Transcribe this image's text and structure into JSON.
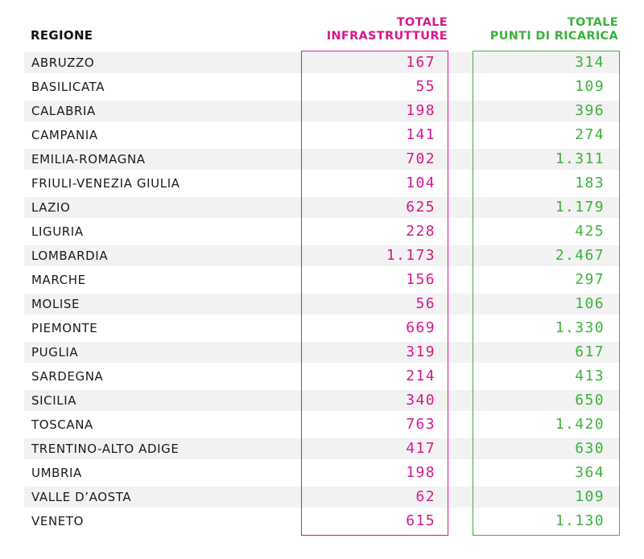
{
  "chart_data": {
    "type": "table",
    "columns": [
      "REGIONE",
      "TOTALE INFRASTRUTTURE",
      "TOTALE PUNTI DI RICARICA"
    ],
    "header": {
      "region": "REGIONE",
      "infra": [
        "TOTALE",
        "INFRASTRUTTURE"
      ],
      "punti": [
        "TOTALE",
        "PUNTI DI RICARICA"
      ]
    },
    "colors": {
      "infra": "#d4198e",
      "punti": "#3cb23c",
      "band": "#f2f2f2"
    },
    "rows": [
      {
        "region": "ABRUZZO",
        "infra": "167",
        "punti": "314"
      },
      {
        "region": "BASILICATA",
        "infra": "55",
        "punti": "109"
      },
      {
        "region": "CALABRIA",
        "infra": "198",
        "punti": "396"
      },
      {
        "region": "CAMPANIA",
        "infra": "141",
        "punti": "274"
      },
      {
        "region": "EMILIA-ROMAGNA",
        "infra": "702",
        "punti": "1.311"
      },
      {
        "region": "FRIULI-VENEZIA GIULIA",
        "infra": "104",
        "punti": "183"
      },
      {
        "region": "LAZIO",
        "infra": "625",
        "punti": "1.179"
      },
      {
        "region": "LIGURIA",
        "infra": "228",
        "punti": "425"
      },
      {
        "region": "LOMBARDIA",
        "infra": "1.173",
        "punti": "2.467"
      },
      {
        "region": "MARCHE",
        "infra": "156",
        "punti": "297"
      },
      {
        "region": "MOLISE",
        "infra": "56",
        "punti": "106"
      },
      {
        "region": "PIEMONTE",
        "infra": "669",
        "punti": "1.330"
      },
      {
        "region": "PUGLIA",
        "infra": "319",
        "punti": "617"
      },
      {
        "region": "SARDEGNA",
        "infra": "214",
        "punti": "413"
      },
      {
        "region": "SICILIA",
        "infra": "340",
        "punti": "650"
      },
      {
        "region": "TOSCANA",
        "infra": "763",
        "punti": "1.420"
      },
      {
        "region": "TRENTINO-ALTO ADIGE",
        "infra": "417",
        "punti": "630"
      },
      {
        "region": "UMBRIA",
        "infra": "198",
        "punti": "364"
      },
      {
        "region": "VALLE D’AOSTA",
        "infra": "62",
        "punti": "109"
      },
      {
        "region": "VENETO",
        "infra": "615",
        "punti": "1.130"
      }
    ]
  }
}
